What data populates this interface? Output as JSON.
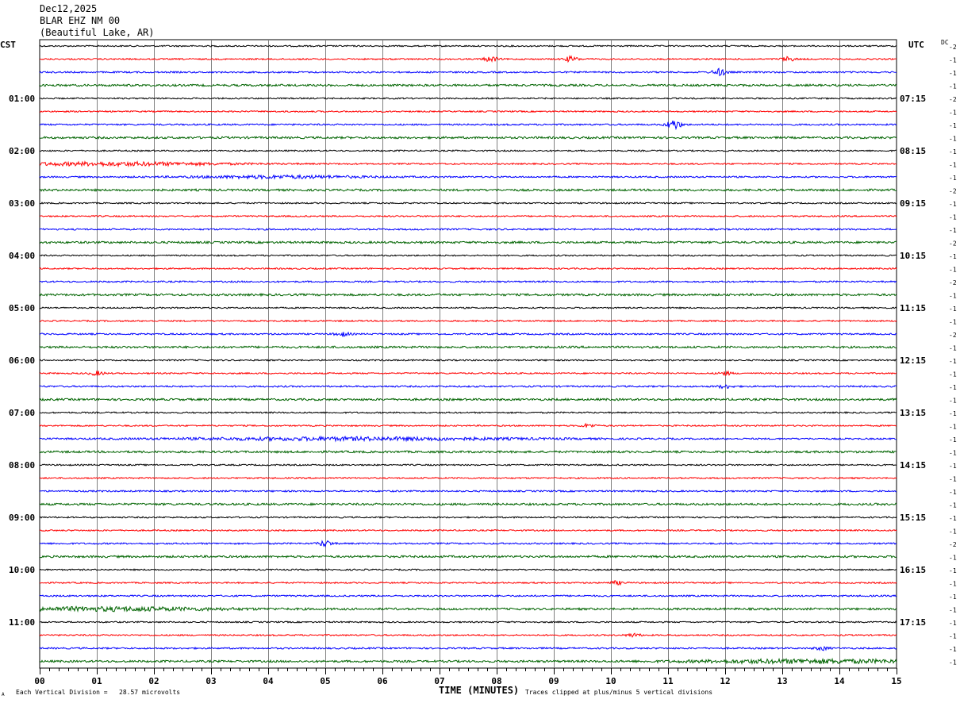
{
  "header": {
    "date": "Dec12,2025",
    "station": "BLAR EHZ NM 00",
    "location": "(Beautiful Lake, AR)"
  },
  "left_tz": "CST",
  "right_tz": "UTC",
  "dc_label": "DC",
  "footer": {
    "scale_note": "Each Vertical Division =   28.57 microvolts",
    "clip_note": "Traces clipped at plus/minus 5 vertical divisions",
    "corner_mark": "A"
  },
  "colors": {
    "trace": [
      "#000000",
      "#ff0000",
      "#0000ff",
      "#006400"
    ],
    "grid": "#808080"
  },
  "chart_data": {
    "type": "line",
    "title": "",
    "xlabel": "TIME (MINUTES)",
    "xlim": [
      0,
      15
    ],
    "x_ticks": [
      "00",
      "01",
      "02",
      "03",
      "04",
      "05",
      "06",
      "07",
      "08",
      "09",
      "10",
      "11",
      "12",
      "13",
      "14",
      "15"
    ],
    "left_hour_labels": [
      "01:00",
      "02:00",
      "03:00",
      "04:00",
      "05:00",
      "06:00",
      "07:00",
      "08:00",
      "09:00",
      "10:00",
      "11:00"
    ],
    "right_hour_labels": [
      "07:15",
      "08:15",
      "09:15",
      "10:15",
      "11:15",
      "12:15",
      "13:15",
      "14:15",
      "15:15",
      "16:15",
      "17:15"
    ],
    "trace_dc_offsets": [
      "-2",
      "-1",
      "-1",
      "-1",
      "-2",
      "-1",
      "-1",
      "-1",
      "-1",
      "-1",
      "-1",
      "-2",
      "-1",
      "-1",
      "-1",
      "-2",
      "-1",
      "-1",
      "-2",
      "-1",
      "-1",
      "-1",
      "-2",
      "-1",
      "-1",
      "-1",
      "-1",
      "-1",
      "-1",
      "-1",
      "-1",
      "-1",
      "-1",
      "-1",
      "-1",
      "-1",
      "-1",
      "-1",
      "-2",
      "-1",
      "-1",
      "-1",
      "-1",
      "-1",
      "-1",
      "-1",
      "-1",
      "-1"
    ],
    "events": [
      {
        "trace": 1,
        "minute": 7.9,
        "amp": 3
      },
      {
        "trace": 1,
        "minute": 9.3,
        "amp": 3
      },
      {
        "trace": 1,
        "minute": 13.1,
        "amp": 2.5
      },
      {
        "trace": 2,
        "minute": 11.9,
        "amp": 4
      },
      {
        "trace": 6,
        "minute": 11.1,
        "amp": 6
      },
      {
        "trace": 9,
        "minute": 1.3,
        "amp": 2,
        "width": 2.0
      },
      {
        "trace": 10,
        "minute": 4.2,
        "amp": 1.5,
        "width": 1.5
      },
      {
        "trace": 22,
        "minute": 5.3,
        "amp": 2.5
      },
      {
        "trace": 25,
        "minute": 1.0,
        "amp": 2.5
      },
      {
        "trace": 25,
        "minute": 12.0,
        "amp": 2
      },
      {
        "trace": 26,
        "minute": 12.0,
        "amp": 2
      },
      {
        "trace": 29,
        "minute": 9.6,
        "amp": 2
      },
      {
        "trace": 30,
        "minute": 5.5,
        "amp": 1.8,
        "width": 3.0
      },
      {
        "trace": 38,
        "minute": 5.0,
        "amp": 3.5
      },
      {
        "trace": 41,
        "minute": 10.1,
        "amp": 2
      },
      {
        "trace": 43,
        "minute": 1.2,
        "amp": 2,
        "width": 2.0
      },
      {
        "trace": 45,
        "minute": 10.4,
        "amp": 2
      },
      {
        "trace": 46,
        "minute": 13.7,
        "amp": 2
      },
      {
        "trace": 47,
        "minute": 13.5,
        "amp": 2,
        "width": 2.0
      }
    ]
  }
}
